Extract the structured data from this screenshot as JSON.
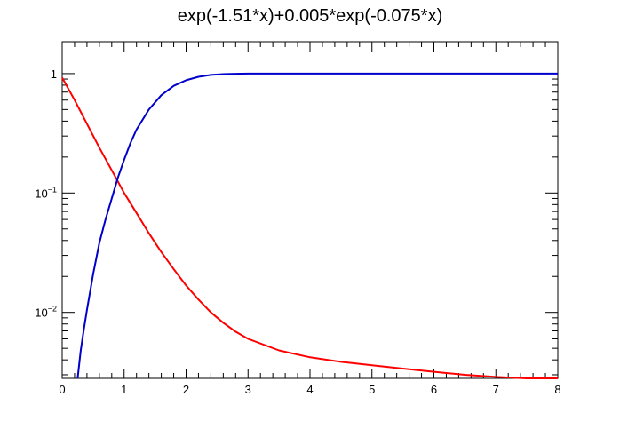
{
  "chart_data": {
    "type": "line",
    "title": "exp(-1.51*x)+0.005*exp(-0.075*x)",
    "xlabel": "",
    "ylabel": "",
    "xlim": [
      0,
      8
    ],
    "ylim": [
      0.0028,
      1.85
    ],
    "yscale": "log",
    "grid": false,
    "x_ticks": [
      "0",
      "1",
      "2",
      "3",
      "4",
      "5",
      "6",
      "7",
      "8"
    ],
    "y_ticks": [
      {
        "value": 1,
        "base": "1",
        "exp": ""
      },
      {
        "value": 0.1,
        "base": "10",
        "exp": "−1"
      },
      {
        "value": 0.01,
        "base": "10",
        "exp": "−2"
      }
    ],
    "x": [
      0,
      0.2,
      0.4,
      0.6,
      0.8,
      1.0,
      1.2,
      1.4,
      1.6,
      1.8,
      2.0,
      2.2,
      2.4,
      2.6,
      2.8,
      3.0,
      3.5,
      4.0,
      4.5,
      5.0,
      5.5,
      6.0,
      6.5,
      7.0,
      7.5,
      8.0
    ],
    "series": [
      {
        "color": "#ff0000",
        "values": [
          0.925,
          0.6,
          0.38,
          0.24,
          0.155,
          0.1,
          0.068,
          0.046,
          0.032,
          0.023,
          0.0168,
          0.0128,
          0.01,
          0.0082,
          0.0069,
          0.006,
          0.0048,
          0.0042,
          0.00385,
          0.0036,
          0.00338,
          0.00318,
          0.003,
          0.00288,
          0.00276,
          0.00266
        ]
      },
      {
        "color": "#0000cc",
        "x": [
          0.25,
          0.3,
          0.35,
          0.4,
          0.5,
          0.6,
          0.7,
          0.8,
          0.9,
          1.0,
          1.1,
          1.2,
          1.4,
          1.6,
          1.8,
          2.0,
          2.2,
          2.4,
          2.6,
          2.8,
          3.0,
          4.0,
          5.0,
          6.0,
          7.0,
          8.0
        ],
        "values": [
          0.0028,
          0.0048,
          0.0072,
          0.0105,
          0.021,
          0.038,
          0.06,
          0.09,
          0.135,
          0.19,
          0.26,
          0.34,
          0.5,
          0.66,
          0.79,
          0.88,
          0.94,
          0.975,
          0.99,
          0.997,
          1.0,
          1.0,
          1.0,
          1.0,
          1.0,
          1.0
        ]
      }
    ]
  }
}
